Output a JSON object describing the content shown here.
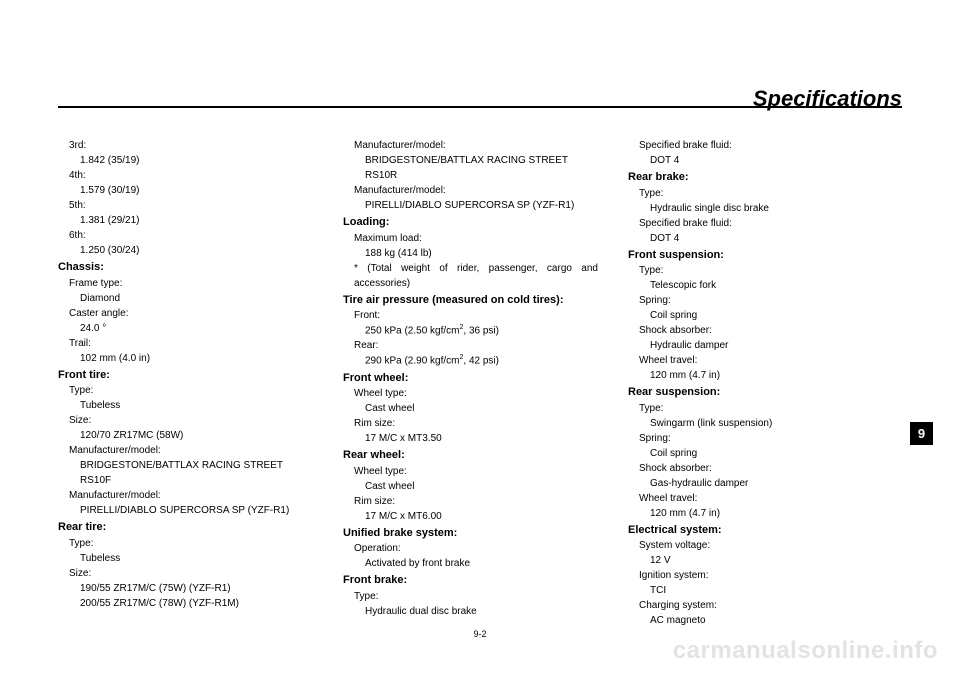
{
  "header": {
    "title": "Specifications"
  },
  "tab": "9",
  "pagenum": "9-2",
  "watermark": "carmanualsonline.info",
  "col1": [
    {
      "t": "k",
      "text": "3rd:"
    },
    {
      "t": "v",
      "text": "1.842 (35/19)"
    },
    {
      "t": "k",
      "text": "4th:"
    },
    {
      "t": "v",
      "text": "1.579 (30/19)"
    },
    {
      "t": "k",
      "text": "5th:"
    },
    {
      "t": "v",
      "text": "1.381 (29/21)"
    },
    {
      "t": "k",
      "text": "6th:"
    },
    {
      "t": "v",
      "text": "1.250 (30/24)"
    },
    {
      "t": "h",
      "text": "Chassis:"
    },
    {
      "t": "k",
      "text": "Frame type:"
    },
    {
      "t": "v",
      "text": "Diamond"
    },
    {
      "t": "k",
      "text": "Caster angle:"
    },
    {
      "t": "v",
      "text": "24.0 °"
    },
    {
      "t": "k",
      "text": "Trail:"
    },
    {
      "t": "v",
      "text": "102 mm (4.0 in)"
    },
    {
      "t": "h",
      "text": "Front tire:"
    },
    {
      "t": "k",
      "text": "Type:"
    },
    {
      "t": "v",
      "text": "Tubeless"
    },
    {
      "t": "k",
      "text": "Size:"
    },
    {
      "t": "v",
      "text": "120/70 ZR17MC (58W)"
    },
    {
      "t": "k",
      "text": "Manufacturer/model:"
    },
    {
      "t": "v",
      "text": "BRIDGESTONE/BATTLAX RACING STREET RS10F"
    },
    {
      "t": "k",
      "text": "Manufacturer/model:"
    },
    {
      "t": "v",
      "text": "PIRELLI/DIABLO SUPERCORSA SP (YZF-R1)"
    },
    {
      "t": "h",
      "text": "Rear tire:"
    },
    {
      "t": "k",
      "text": "Type:"
    },
    {
      "t": "v",
      "text": "Tubeless"
    },
    {
      "t": "k",
      "text": "Size:"
    },
    {
      "t": "v",
      "text": "190/55 ZR17M/C (75W) (YZF-R1)"
    },
    {
      "t": "v",
      "text": "200/55 ZR17M/C (78W) (YZF-R1M)"
    }
  ],
  "col2": [
    {
      "t": "k",
      "text": "Manufacturer/model:"
    },
    {
      "t": "v",
      "text": "BRIDGESTONE/BATTLAX RACING STREET RS10R"
    },
    {
      "t": "k",
      "text": "Manufacturer/model:"
    },
    {
      "t": "v",
      "text": "PIRELLI/DIABLO SUPERCORSA SP (YZF-R1)"
    },
    {
      "t": "h",
      "text": "Loading:"
    },
    {
      "t": "k",
      "text": "Maximum load:"
    },
    {
      "t": "v",
      "text": "188 kg (414 lb)"
    },
    {
      "t": "note",
      "text": "* (Total weight of rider, passenger, cargo and accessories)"
    },
    {
      "t": "h",
      "text": "Tire air pressure (measured on cold tires):"
    },
    {
      "t": "k",
      "text": "Front:"
    },
    {
      "t": "v",
      "html": "250 kPa (2.50 kgf/cm<sup>2</sup>, 36 psi)"
    },
    {
      "t": "k",
      "text": "Rear:"
    },
    {
      "t": "v",
      "html": "290 kPa (2.90 kgf/cm<sup>2</sup>, 42 psi)"
    },
    {
      "t": "h",
      "text": "Front wheel:"
    },
    {
      "t": "k",
      "text": "Wheel type:"
    },
    {
      "t": "v",
      "text": "Cast wheel"
    },
    {
      "t": "k",
      "text": "Rim size:"
    },
    {
      "t": "v",
      "text": "17 M/C x MT3.50"
    },
    {
      "t": "h",
      "text": "Rear wheel:"
    },
    {
      "t": "k",
      "text": "Wheel type:"
    },
    {
      "t": "v",
      "text": "Cast wheel"
    },
    {
      "t": "k",
      "text": "Rim size:"
    },
    {
      "t": "v",
      "text": "17 M/C x MT6.00"
    },
    {
      "t": "h",
      "text": "Unified brake system:"
    },
    {
      "t": "k",
      "text": "Operation:"
    },
    {
      "t": "v",
      "text": "Activated by front brake"
    },
    {
      "t": "h",
      "text": "Front brake:"
    },
    {
      "t": "k",
      "text": "Type:"
    },
    {
      "t": "v",
      "text": "Hydraulic dual disc brake"
    }
  ],
  "col3": [
    {
      "t": "k",
      "text": "Specified brake fluid:"
    },
    {
      "t": "v",
      "text": "DOT 4"
    },
    {
      "t": "h",
      "text": "Rear brake:"
    },
    {
      "t": "k",
      "text": "Type:"
    },
    {
      "t": "v",
      "text": "Hydraulic single disc brake"
    },
    {
      "t": "k",
      "text": "Specified brake fluid:"
    },
    {
      "t": "v",
      "text": "DOT 4"
    },
    {
      "t": "h",
      "text": "Front suspension:"
    },
    {
      "t": "k",
      "text": "Type:"
    },
    {
      "t": "v",
      "text": "Telescopic fork"
    },
    {
      "t": "k",
      "text": "Spring:"
    },
    {
      "t": "v",
      "text": "Coil spring"
    },
    {
      "t": "k",
      "text": "Shock absorber:"
    },
    {
      "t": "v",
      "text": "Hydraulic damper"
    },
    {
      "t": "k",
      "text": "Wheel travel:"
    },
    {
      "t": "v",
      "text": "120 mm (4.7 in)"
    },
    {
      "t": "h",
      "text": "Rear suspension:"
    },
    {
      "t": "k",
      "text": "Type:"
    },
    {
      "t": "v",
      "text": "Swingarm (link suspension)"
    },
    {
      "t": "k",
      "text": "Spring:"
    },
    {
      "t": "v",
      "text": "Coil spring"
    },
    {
      "t": "k",
      "text": "Shock absorber:"
    },
    {
      "t": "v",
      "text": "Gas-hydraulic damper"
    },
    {
      "t": "k",
      "text": "Wheel travel:"
    },
    {
      "t": "v",
      "text": "120 mm (4.7 in)"
    },
    {
      "t": "h",
      "text": "Electrical system:"
    },
    {
      "t": "k",
      "text": "System voltage:"
    },
    {
      "t": "v",
      "text": "12 V"
    },
    {
      "t": "k",
      "text": "Ignition system:"
    },
    {
      "t": "v",
      "text": "TCI"
    },
    {
      "t": "k",
      "text": "Charging system:"
    },
    {
      "t": "v",
      "text": "AC magneto"
    }
  ]
}
